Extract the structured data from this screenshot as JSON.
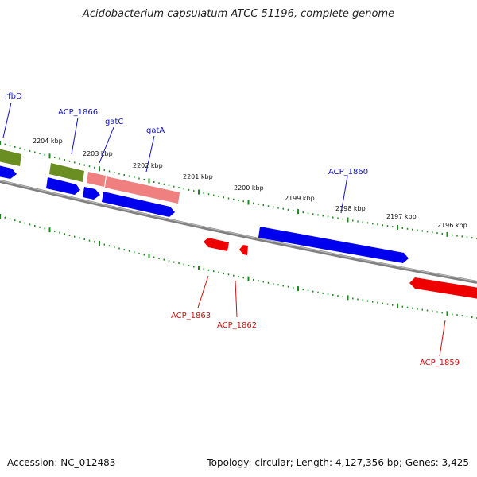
{
  "title": "Acidobacterium capsulatum ATCC 51196, complete genome",
  "footer": {
    "accession": "Accession: NC_012483",
    "summary": "Topology: circular; Length: 4,127,356 bp; Genes: 3,425"
  },
  "colors": {
    "backbone": "#808080",
    "ticks": "#1a8a1a",
    "forward_cds": "#0000ee",
    "reverse_cds": "#ee0000",
    "rna": "#f08080",
    "other": "#6b8e23",
    "forward_label": "#1010c0",
    "reverse_label": "#d01010"
  },
  "scale_labels": [
    "2204 kbp",
    "2203 kbp",
    "2202 kbp",
    "2201 kbp",
    "2200 kbp",
    "2199 kbp",
    "2198 kbp",
    "2197 kbp",
    "2196 kbp"
  ],
  "gene_labels": {
    "forward": [
      "rfbD",
      "ACP_1866",
      "gatC",
      "gatA",
      "ACP_1860"
    ],
    "reverse": [
      "ACP_1863",
      "ACP_1862",
      "ACP_1859"
    ]
  }
}
